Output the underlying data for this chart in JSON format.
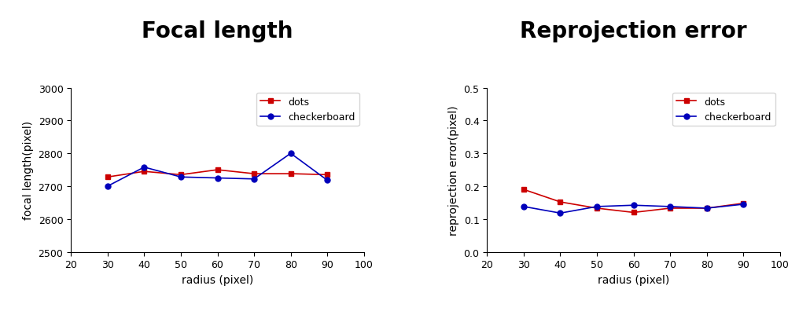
{
  "radius": [
    30,
    40,
    50,
    60,
    70,
    80,
    90
  ],
  "focal_dots": [
    2728,
    2745,
    2735,
    2750,
    2738,
    2738,
    2735
  ],
  "focal_checker": [
    2700,
    2758,
    2728,
    2725,
    2722,
    2800,
    2718
  ],
  "reproj_dots": [
    0.19,
    0.152,
    0.133,
    0.12,
    0.133,
    0.133,
    0.148
  ],
  "reproj_checker": [
    0.138,
    0.118,
    0.138,
    0.142,
    0.138,
    0.133,
    0.145
  ],
  "title1": "Focal length",
  "title2": "Reprojection error",
  "xlabel": "radius (pixel)",
  "ylabel1": "focal length(pixel)",
  "ylabel2": "reprojection error(pixel)",
  "xlim": [
    20,
    100
  ],
  "xticks": [
    20,
    30,
    40,
    50,
    60,
    70,
    80,
    90,
    100
  ],
  "ylim1": [
    2500,
    3000
  ],
  "yticks1": [
    2500,
    2600,
    2700,
    2800,
    2900,
    3000
  ],
  "ylim2": [
    0.0,
    0.5
  ],
  "yticks2": [
    0.0,
    0.1,
    0.2,
    0.3,
    0.4,
    0.5
  ],
  "color_dots": "#cc0000",
  "color_checker": "#0000bb",
  "legend_dots": "dots",
  "legend_checker": "checkerboard",
  "title_fontsize": 20,
  "title_fontweight": "bold",
  "axis_label_fontsize": 10,
  "tick_fontsize": 9
}
